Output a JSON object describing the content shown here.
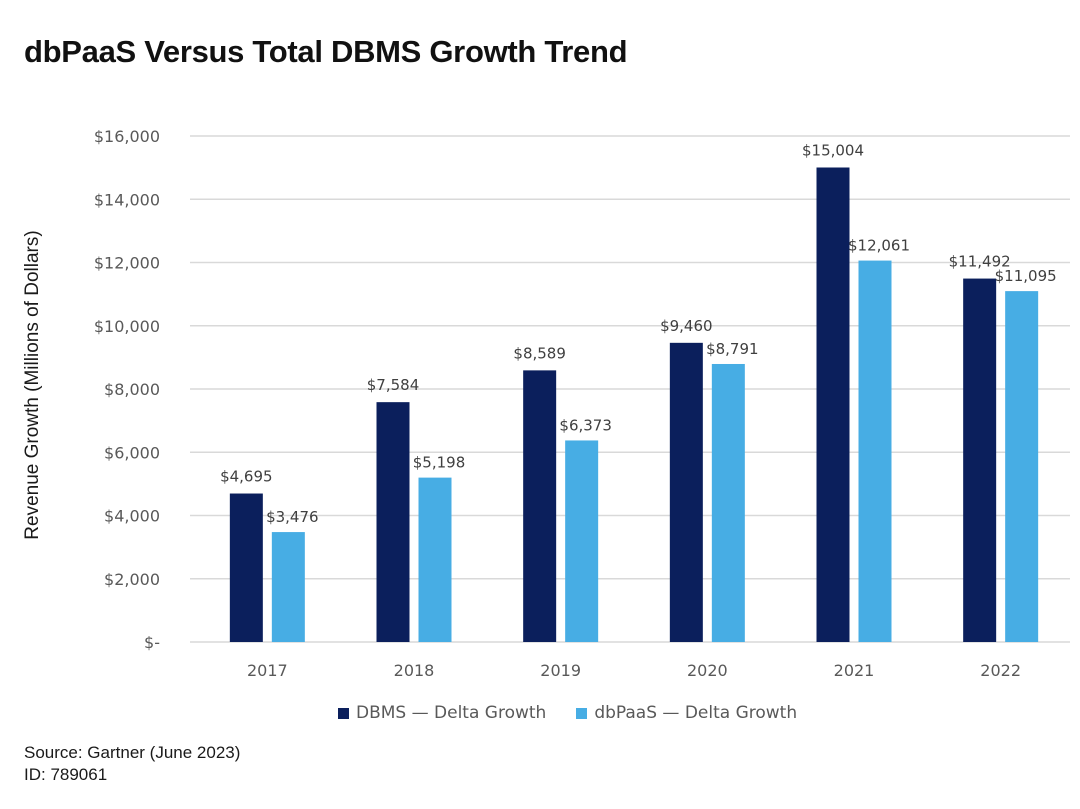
{
  "chart_data": {
    "type": "bar",
    "title": "dbPaaS Versus Total DBMS Growth Trend",
    "xlabel": "",
    "ylabel": "Revenue Growth (Millions of Dollars)",
    "categories": [
      "2017",
      "2018",
      "2019",
      "2020",
      "2021",
      "2022"
    ],
    "series": [
      {
        "name": "DBMS — Delta Growth",
        "color": "#0b1f5c",
        "values": [
          4695,
          7584,
          8589,
          9460,
          15004,
          11492
        ],
        "labels": [
          "$4,695",
          "$7,584",
          "$8,589",
          "$9,460",
          "$15,004",
          "$11,492"
        ]
      },
      {
        "name": "dbPaaS — Delta Growth",
        "color": "#47ade4",
        "values": [
          3476,
          5198,
          6373,
          8791,
          12061,
          11095
        ],
        "labels": [
          "$3,476",
          "$5,198",
          "$6,373",
          "$8,791",
          "$12,061",
          "$11,095"
        ]
      }
    ],
    "ylim": [
      0,
      16000
    ],
    "yticks": [
      0,
      2000,
      4000,
      6000,
      8000,
      10000,
      12000,
      14000,
      16000
    ],
    "ytick_labels": [
      "$-",
      "$2,000",
      "$4,000",
      "$6,000",
      "$8,000",
      "$10,000",
      "$12,000",
      "$14,000",
      "$16,000"
    ],
    "grid": true,
    "gridline_color": "#d9d9d9",
    "legend_position": "bottom-center"
  },
  "footer": {
    "source": "Source: Gartner (June 2023)",
    "id": "ID: 789061"
  }
}
